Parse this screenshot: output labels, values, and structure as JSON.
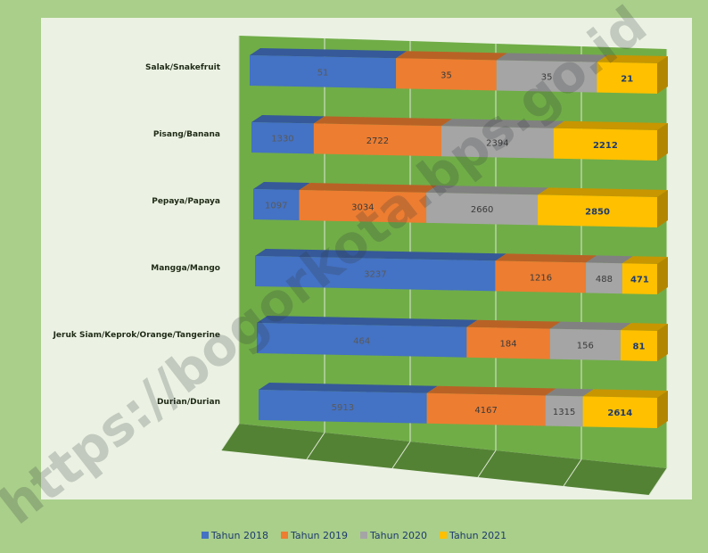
{
  "chart_data": {
    "type": "bar",
    "orientation": "horizontal",
    "stacked": true,
    "three_d": true,
    "categories": [
      "Salak/Snakefruit",
      "Pisang/Banana",
      "Pepaya/Papaya",
      "Mangga/Mango",
      "Jeruk Siam/Keprok/Orange/Tangerine",
      "Durian/Durian"
    ],
    "series": [
      {
        "name": "Tahun 2018",
        "color": "#4472c4",
        "values": [
          51,
          1330,
          1097,
          3237,
          464,
          5913
        ],
        "labels": [
          "51",
          "1330",
          "1097",
          "3237",
          "464",
          "5913"
        ]
      },
      {
        "name": "Tahun 2019",
        "color": "#ed7d31",
        "values": [
          35,
          2722,
          3034,
          1216,
          184,
          4167
        ],
        "labels": [
          "35",
          "2722",
          "3034",
          "1216",
          "184",
          "4167"
        ]
      },
      {
        "name": "Tahun 2020",
        "color": "#a5a5a5",
        "values": [
          35,
          2394,
          2660,
          488,
          156,
          1315
        ],
        "labels": [
          "35",
          "2394",
          "2660",
          "488",
          "156",
          "1315"
        ]
      },
      {
        "name": "Tahun 2021",
        "color": "#ffc000",
        "values": [
          21,
          2212,
          2850,
          471,
          81,
          2614
        ],
        "labels": [
          "21",
          "2212",
          "2850",
          "471",
          "81",
          "2614"
        ]
      }
    ],
    "legend_position": "bottom",
    "grid": true,
    "wall_color": "#70ad47",
    "floor_color": "#548235"
  },
  "watermark": "https://bogorkota.bps.go.id"
}
